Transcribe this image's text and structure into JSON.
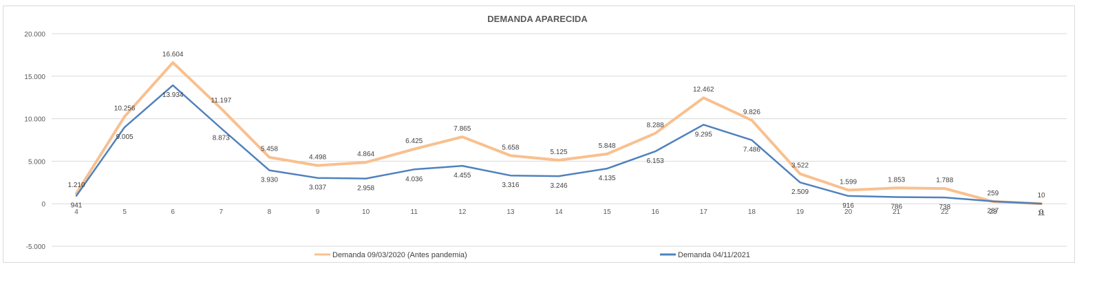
{
  "chart_data": {
    "type": "line",
    "title": "DEMANDA APARECIDA",
    "xlabel": "",
    "ylabel": "",
    "x": [
      "4",
      "5",
      "6",
      "7",
      "8",
      "9",
      "10",
      "11",
      "12",
      "13",
      "14",
      "15",
      "16",
      "17",
      "18",
      "19",
      "20",
      "21",
      "22",
      "23",
      "0"
    ],
    "ylim": [
      -5000,
      20000
    ],
    "yticks": [
      20000,
      15000,
      10000,
      5000,
      0,
      -5000
    ],
    "ytick_labels": [
      "20.000",
      "15.000",
      "10.000",
      "5.000",
      "0",
      "-5.000"
    ],
    "grid": true,
    "legend_position": "bottom",
    "series": [
      {
        "name": "Demanda 09/03/2020 (Antes pandemia)",
        "color": "#F8C08F",
        "values": [
          1210,
          10256,
          16604,
          11197,
          5458,
          4498,
          4864,
          6425,
          7865,
          5658,
          5125,
          5848,
          8288,
          12462,
          9826,
          3522,
          1599,
          1853,
          1788,
          259,
          10
        ],
        "labels": [
          "1.210",
          "10.256",
          "16.604",
          "11.197",
          "5.458",
          "4.498",
          "4.864",
          "6.425",
          "7.865",
          "5.658",
          "5.125",
          "5.848",
          "8.288",
          "12.462",
          "9.826",
          "3.522",
          "1.599",
          "1.853",
          "1.788",
          "259",
          "10"
        ]
      },
      {
        "name": "Demanda 04/11/2021",
        "color": "#4F81BD",
        "values": [
          941,
          9005,
          13934,
          8873,
          3930,
          3037,
          2958,
          4036,
          4455,
          3316,
          3246,
          4135,
          6153,
          9295,
          7486,
          2509,
          916,
          786,
          738,
          287,
          11
        ],
        "labels": [
          "941",
          "9.005",
          "13.934",
          "8.873",
          "3.930",
          "3.037",
          "2.958",
          "4.036",
          "4.455",
          "3.316",
          "3.246",
          "4.135",
          "6.153",
          "9.295",
          "7.486",
          "2.509",
          "916",
          "786",
          "738",
          "287",
          "11"
        ]
      }
    ]
  }
}
